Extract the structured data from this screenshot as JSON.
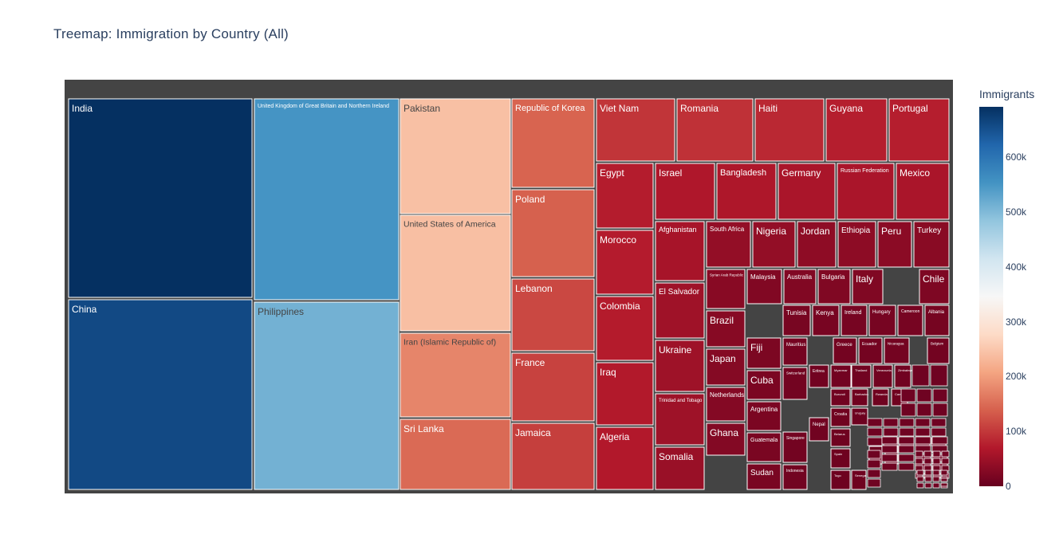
{
  "chart_data": {
    "type": "treemap",
    "title": "Treemap: Immigration by Country (All)",
    "colorbar": {
      "title": "Immigrants",
      "range": [
        0,
        691904
      ],
      "ticks": [
        {
          "value": 0,
          "label": "0"
        },
        {
          "value": 100000,
          "label": "100k"
        },
        {
          "value": 200000,
          "label": "200k"
        },
        {
          "value": 300000,
          "label": "300k"
        },
        {
          "value": 400000,
          "label": "400k"
        },
        {
          "value": 500000,
          "label": "500k"
        },
        {
          "value": 600000,
          "label": "600k"
        }
      ],
      "colorscale": [
        "#67001f",
        "#b2182b",
        "#d6604d",
        "#f4a582",
        "#fddbc7",
        "#f7f7f7",
        "#d1e5f0",
        "#92c5de",
        "#4393c3",
        "#2166ac",
        "#053061"
      ]
    },
    "labeled_items": [
      {
        "label": "India",
        "value": 691904
      },
      {
        "label": "China",
        "value": 659962
      },
      {
        "label": "United Kingdom of Great Britain and Northern Ireland",
        "value": 551500
      },
      {
        "label": "Philippines",
        "value": 511391
      },
      {
        "label": "Pakistan",
        "value": 241600
      },
      {
        "label": "United States of America",
        "value": 241122
      },
      {
        "label": "Iran (Islamic Republic of)",
        "value": 175923
      },
      {
        "label": "Sri Lanka",
        "value": 148358
      },
      {
        "label": "Republic of Korea",
        "value": 142581
      },
      {
        "label": "Poland",
        "value": 139241
      },
      {
        "label": "Lebanon",
        "value": 115359
      },
      {
        "label": "France",
        "value": 109091
      },
      {
        "label": "Jamaica",
        "value": 106431
      },
      {
        "label": "Viet Nam",
        "value": 97146
      },
      {
        "label": "Romania",
        "value": 93585
      },
      {
        "label": "Haiti",
        "value": 84604
      },
      {
        "label": "Guyana",
        "value": 74732
      },
      {
        "label": "Portugal",
        "value": 74591
      },
      {
        "label": "Egypt",
        "value": 72745
      },
      {
        "label": "Morocco",
        "value": 72327
      },
      {
        "label": "Colombia",
        "value": 72088
      },
      {
        "label": "Iraq",
        "value": 69789
      },
      {
        "label": "Algeria",
        "value": 69439
      },
      {
        "label": "Israel",
        "value": 66508
      },
      {
        "label": "Bangladesh",
        "value": 65568
      },
      {
        "label": "Germany",
        "value": 61898
      },
      {
        "label": "Russian Federation",
        "value": 61773
      },
      {
        "label": "Mexico",
        "value": 61500
      },
      {
        "label": "Afghanistan",
        "value": 58639
      },
      {
        "label": "El Salvador",
        "value": 52000
      },
      {
        "label": "Ukraine",
        "value": 51000
      },
      {
        "label": "Trinidad and Tobago",
        "value": 50960
      },
      {
        "label": "Somalia",
        "value": 46000
      },
      {
        "label": "South Africa",
        "value": 41000
      },
      {
        "label": "Nigeria",
        "value": 40500
      },
      {
        "label": "Jordan",
        "value": 36000
      },
      {
        "label": "Ethiopia",
        "value": 35500
      },
      {
        "label": "Peru",
        "value": 33000
      },
      {
        "label": "Turkey",
        "value": 31000
      },
      {
        "label": "Syrian Arab Republic",
        "value": 30000
      },
      {
        "label": "Brazil",
        "value": 29659
      },
      {
        "label": "Japan",
        "value": 27707
      },
      {
        "label": "Netherlands",
        "value": 26500
      },
      {
        "label": "Ghana",
        "value": 26000
      },
      {
        "label": "Malaysia",
        "value": 24000
      },
      {
        "label": "Australia",
        "value": 23800
      },
      {
        "label": "Bulgaria",
        "value": 23500
      },
      {
        "label": "Italy",
        "value": 23000
      },
      {
        "label": "Chile",
        "value": 21500
      },
      {
        "label": "Fiji",
        "value": 19000
      },
      {
        "label": "Cuba",
        "value": 18500
      },
      {
        "label": "Argentina",
        "value": 18000
      },
      {
        "label": "Guatemala",
        "value": 17500
      },
      {
        "label": "Sudan",
        "value": 16500
      },
      {
        "label": "Tunisia",
        "value": 16000
      },
      {
        "label": "Kenya",
        "value": 15500
      },
      {
        "label": "Ireland",
        "value": 15000
      },
      {
        "label": "Hungary",
        "value": 14800
      },
      {
        "label": "Cameroon",
        "value": 14500
      },
      {
        "label": "Albania",
        "value": 14200
      },
      {
        "label": "Mauritius",
        "value": 12500
      },
      {
        "label": "Greece",
        "value": 12200
      },
      {
        "label": "Ecuador",
        "value": 12000
      },
      {
        "label": "Nicaragua",
        "value": 11800
      },
      {
        "label": "Belgium",
        "value": 11500
      },
      {
        "label": "Switzerland",
        "value": 11000
      },
      {
        "label": "Singapore",
        "value": 10800
      },
      {
        "label": "Indonesia",
        "value": 10500
      },
      {
        "label": "Eritrea",
        "value": 10000
      },
      {
        "label": "Myanmar",
        "value": 9800
      },
      {
        "label": "Thailand",
        "value": 9600
      },
      {
        "label": "Venezuela",
        "value": 9400
      },
      {
        "label": "Zimbabwe",
        "value": 9200
      },
      {
        "label": "Nepal",
        "value": 9000
      },
      {
        "label": "Burundi",
        "value": 8800
      },
      {
        "label": "Barbados",
        "value": 8600
      },
      {
        "label": "Rwanda",
        "value": 8400
      },
      {
        "label": "Cambodia",
        "value": 8200
      },
      {
        "label": "Croatia",
        "value": 8000
      },
      {
        "label": "Belarus",
        "value": 7800
      },
      {
        "label": "Spain",
        "value": 7600
      },
      {
        "label": "Libya",
        "value": 7400
      },
      {
        "label": "Senegal",
        "value": 7200
      },
      {
        "label": "Togo",
        "value": 6000
      },
      {
        "label": "Benin",
        "value": 5800
      },
      {
        "label": "Canada",
        "value": 5600
      },
      {
        "label": "Uruguay",
        "value": 5400
      }
    ]
  }
}
